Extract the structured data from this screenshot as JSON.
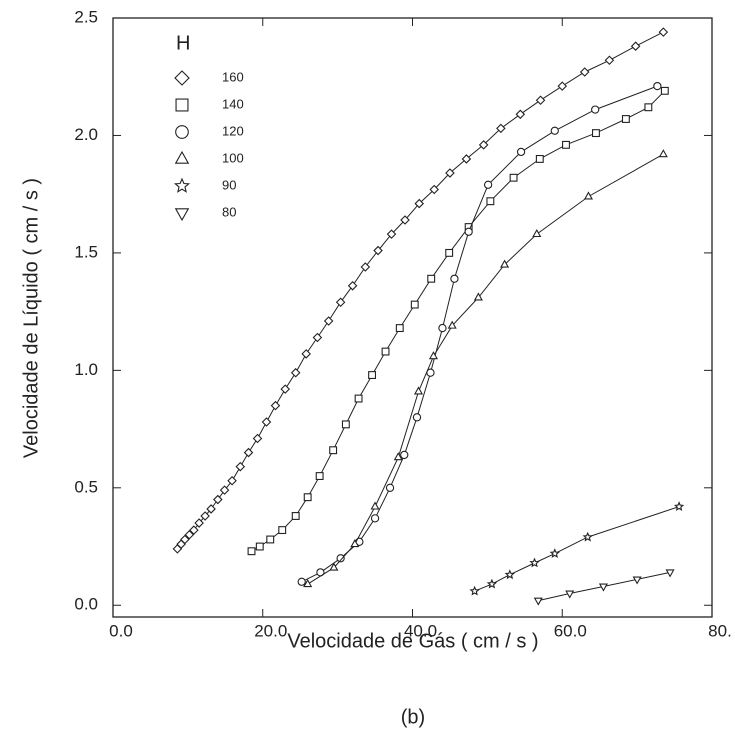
{
  "chart_data": {
    "type": "scatter",
    "caption": "(b)",
    "xlabel": "Velocidade de Gás  ( cm / s )",
    "ylabel": "Velocidade de Líquido  ( cm / s )",
    "legend_title": "H",
    "legend": "upper left",
    "xlim": [
      0,
      80
    ],
    "ylim": [
      -0.05,
      2.5
    ],
    "xticks": [
      {
        "value": 0,
        "label": "0.0"
      },
      {
        "value": 20,
        "label": "20.0"
      },
      {
        "value": 40,
        "label": "40.0"
      },
      {
        "value": 60,
        "label": "60.0"
      },
      {
        "value": 80,
        "label": "80."
      }
    ],
    "yticks": [
      {
        "value": 0,
        "label": "0.0"
      },
      0.5,
      {
        "value": 1,
        "label": "1.0"
      },
      1.5,
      {
        "value": 2,
        "label": "2.0"
      },
      2.5
    ],
    "color": "#222222",
    "series": [
      {
        "name": "160",
        "marker": "diamond",
        "x": [
          8.6,
          9.1,
          9.6,
          10.2,
          10.8,
          11.5,
          12.3,
          13.1,
          14.0,
          14.9,
          15.9,
          17.0,
          18.1,
          19.3,
          20.5,
          21.7,
          23.0,
          24.4,
          25.8,
          27.3,
          28.8,
          30.4,
          32.0,
          33.7,
          35.4,
          37.2,
          39.0,
          40.9,
          42.9,
          45.0,
          47.2,
          49.5,
          51.8,
          54.4,
          57.1,
          60.0,
          63.0,
          66.3,
          69.8,
          73.5
        ],
        "values": [
          0.24,
          0.26,
          0.28,
          0.3,
          0.32,
          0.35,
          0.38,
          0.41,
          0.45,
          0.49,
          0.53,
          0.59,
          0.65,
          0.71,
          0.78,
          0.85,
          0.92,
          0.99,
          1.07,
          1.14,
          1.21,
          1.29,
          1.36,
          1.44,
          1.51,
          1.58,
          1.64,
          1.71,
          1.77,
          1.84,
          1.9,
          1.96,
          2.03,
          2.09,
          2.15,
          2.21,
          2.27,
          2.32,
          2.38,
          2.44
        ]
      },
      {
        "name": "140",
        "marker": "square",
        "x": [
          18.5,
          19.6,
          21.0,
          22.6,
          24.4,
          26.0,
          27.6,
          29.4,
          31.1,
          32.8,
          34.6,
          36.4,
          38.3,
          40.3,
          42.5,
          44.9,
          47.5,
          50.4,
          53.5,
          57.0,
          60.5,
          64.5,
          68.5,
          71.5,
          73.7
        ],
        "values": [
          0.23,
          0.25,
          0.28,
          0.32,
          0.38,
          0.46,
          0.55,
          0.66,
          0.77,
          0.88,
          0.98,
          1.08,
          1.18,
          1.28,
          1.39,
          1.5,
          1.61,
          1.72,
          1.82,
          1.9,
          1.96,
          2.01,
          2.07,
          2.12,
          2.19
        ]
      },
      {
        "name": "120",
        "marker": "circle",
        "x": [
          25.2,
          27.7,
          30.4,
          32.9,
          35.0,
          37.0,
          38.9,
          40.6,
          42.4,
          44.0,
          45.6,
          47.5,
          50.1,
          54.5,
          59.0,
          64.4,
          72.7
        ],
        "values": [
          0.1,
          0.14,
          0.2,
          0.27,
          0.37,
          0.5,
          0.64,
          0.8,
          0.99,
          1.18,
          1.39,
          1.59,
          1.79,
          1.93,
          2.02,
          2.11,
          2.21
        ]
      },
      {
        "name": "100",
        "marker": "triangle",
        "x": [
          26.0,
          29.5,
          32.3,
          35.0,
          38.1,
          40.8,
          42.8,
          45.3,
          48.8,
          52.3,
          56.6,
          63.5,
          73.5
        ],
        "values": [
          0.09,
          0.16,
          0.26,
          0.42,
          0.63,
          0.91,
          1.06,
          1.19,
          1.31,
          1.45,
          1.58,
          1.74,
          1.92
        ]
      },
      {
        "name": "90",
        "marker": "star",
        "x": [
          48.3,
          50.6,
          53.0,
          56.3,
          59.0,
          63.4,
          75.6
        ],
        "values": [
          0.06,
          0.09,
          0.13,
          0.18,
          0.22,
          0.29,
          0.42
        ]
      },
      {
        "name": "80",
        "marker": "triangle-down",
        "x": [
          56.8,
          61.0,
          65.5,
          70.0,
          74.4
        ],
        "values": [
          0.02,
          0.05,
          0.08,
          0.11,
          0.14
        ]
      }
    ]
  }
}
